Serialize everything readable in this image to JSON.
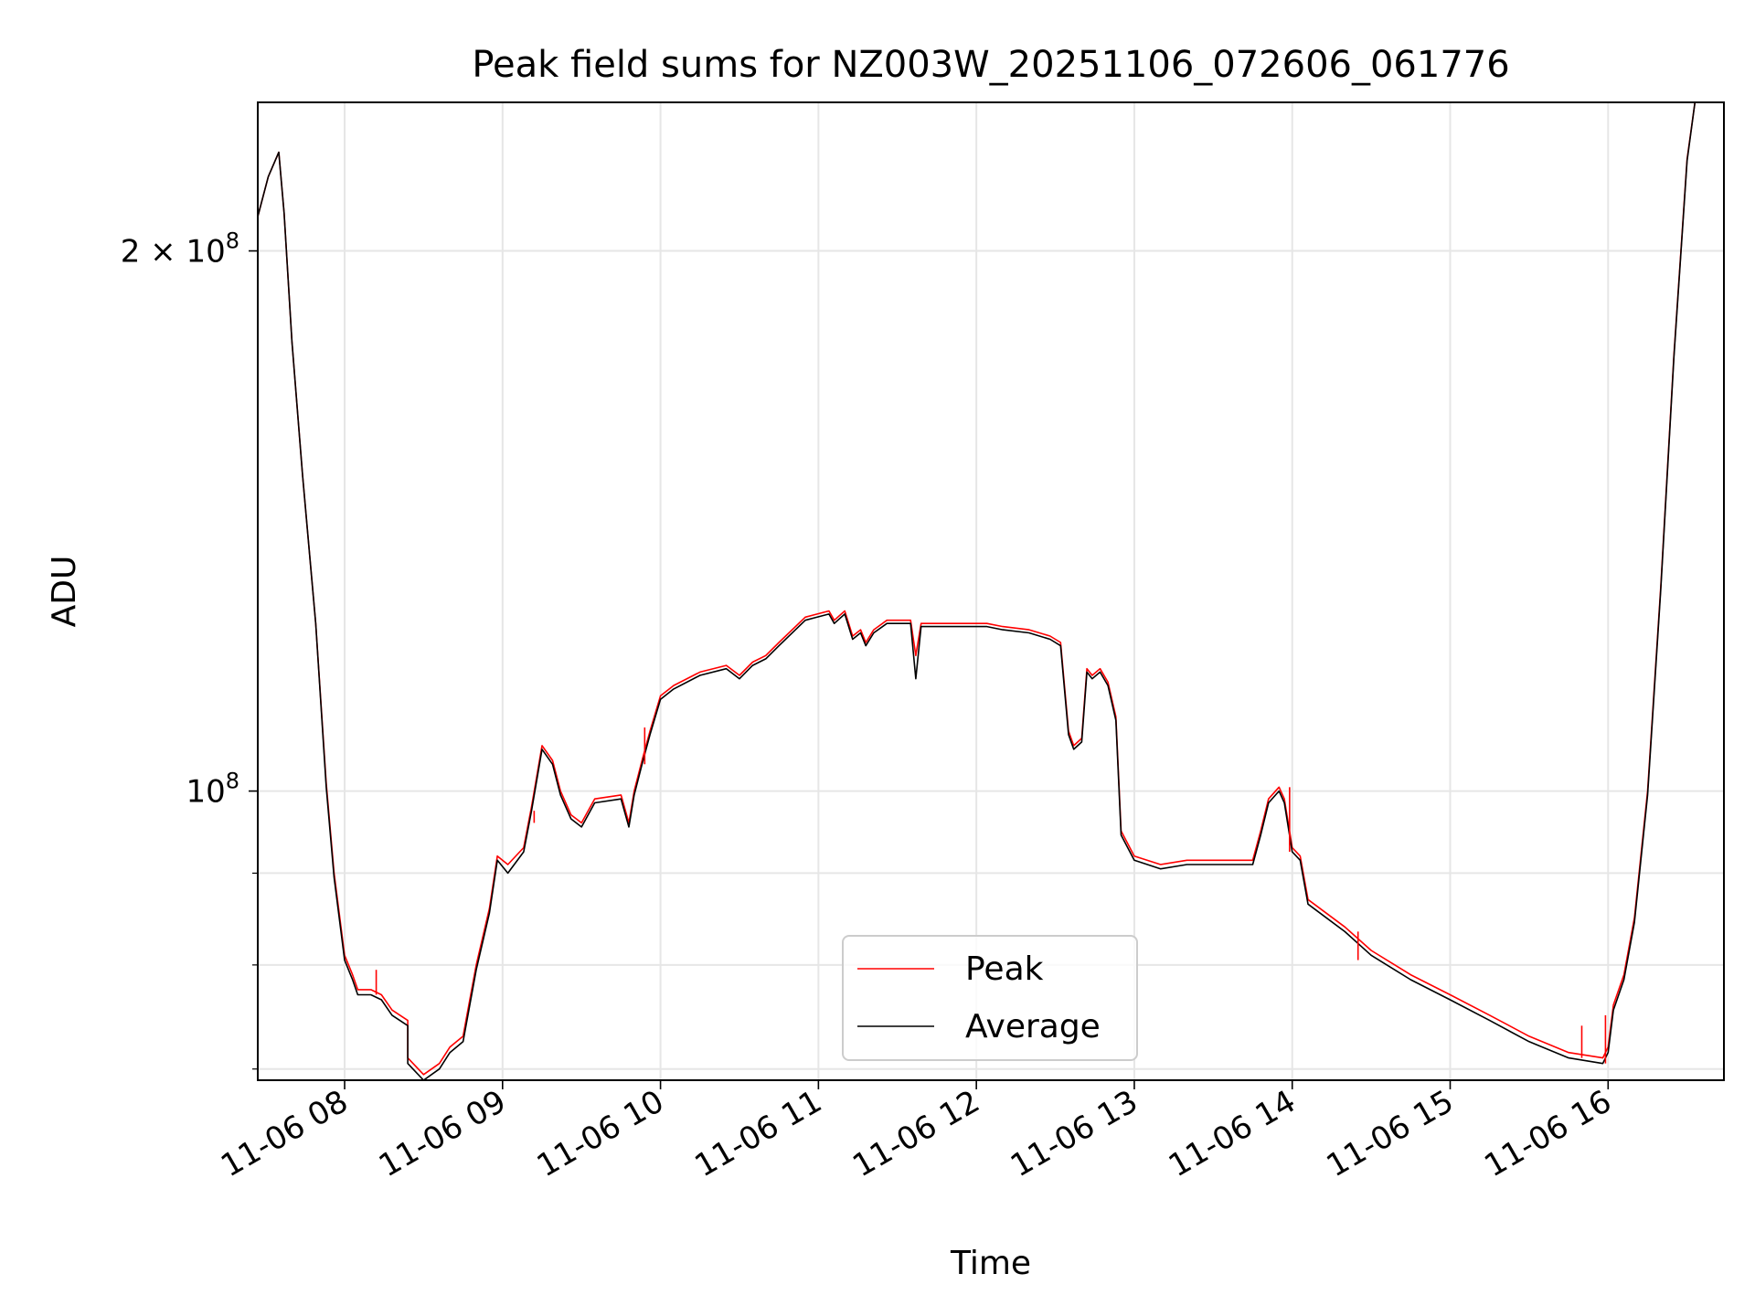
{
  "chart_data": {
    "type": "line",
    "title": "Peak field sums for NZ003W_20251106_072606_061776",
    "xlabel": "Time",
    "ylabel": "ADU",
    "yscale": "log",
    "grid": true,
    "legend_location": "lower center",
    "xlim": [
      "2025-11-06 07:27",
      "2025-11-06 16:44"
    ],
    "ylim": [
      69000000,
      242000000
    ],
    "x_ticks": [
      {
        "value": "2025-11-06 08:00",
        "label": "11-06 08"
      },
      {
        "value": "2025-11-06 09:00",
        "label": "11-06 09"
      },
      {
        "value": "2025-11-06 10:00",
        "label": "11-06 10"
      },
      {
        "value": "2025-11-06 11:00",
        "label": "11-06 11"
      },
      {
        "value": "2025-11-06 12:00",
        "label": "11-06 12"
      },
      {
        "value": "2025-11-06 13:00",
        "label": "11-06 13"
      },
      {
        "value": "2025-11-06 14:00",
        "label": "11-06 14"
      },
      {
        "value": "2025-11-06 15:00",
        "label": "11-06 15"
      },
      {
        "value": "2025-11-06 16:00",
        "label": "11-06 16"
      }
    ],
    "y_major_ticks": [
      {
        "value": 100000000,
        "base": "10",
        "exp": "8",
        "mant": ""
      },
      {
        "value": 200000000,
        "base": "10",
        "exp": "8",
        "mant": "2 × "
      }
    ],
    "y_minor_ticks": [
      70000000,
      80000000,
      90000000
    ],
    "series": [
      {
        "name": "Peak",
        "color": "#ff0000",
        "points": [
          [
            "2025-11-06 07:27",
            209000000
          ],
          [
            "2025-11-06 07:31",
            220000000
          ],
          [
            "2025-11-06 07:35",
            227000000
          ],
          [
            "2025-11-06 07:37",
            210000000
          ],
          [
            "2025-11-06 07:40",
            178000000
          ],
          [
            "2025-11-06 07:44",
            150000000
          ],
          [
            "2025-11-06 07:49",
            124000000
          ],
          [
            "2025-11-06 07:53",
            101000000
          ],
          [
            "2025-11-06 07:56",
            90000000
          ],
          [
            "2025-11-06 08:00",
            81000000
          ],
          [
            "2025-11-06 08:03",
            79000000
          ],
          [
            "2025-11-06 08:05",
            77500000
          ],
          [
            "2025-11-06 08:10",
            77500000
          ],
          [
            "2025-11-06 08:14",
            77000000
          ],
          [
            "2025-11-06 08:18",
            75500000
          ],
          [
            "2025-11-06 08:24",
            74500000
          ],
          [
            "2025-11-06 08:24",
            71000000
          ],
          [
            "2025-11-06 08:30",
            69500000
          ],
          [
            "2025-11-06 08:36",
            70500000
          ],
          [
            "2025-11-06 08:40",
            72000000
          ],
          [
            "2025-11-06 08:45",
            73000000
          ],
          [
            "2025-11-06 08:50",
            80000000
          ],
          [
            "2025-11-06 08:55",
            86000000
          ],
          [
            "2025-11-06 08:58",
            92000000
          ],
          [
            "2025-11-06 09:02",
            91000000
          ],
          [
            "2025-11-06 09:08",
            93000000
          ],
          [
            "2025-11-06 09:11",
            98000000
          ],
          [
            "2025-11-06 09:15",
            106000000
          ],
          [
            "2025-11-06 09:19",
            104000000
          ],
          [
            "2025-11-06 09:22",
            100000000
          ],
          [
            "2025-11-06 09:26",
            97000000
          ],
          [
            "2025-11-06 09:30",
            96000000
          ],
          [
            "2025-11-06 09:35",
            99000000
          ],
          [
            "2025-11-06 09:45",
            99500000
          ],
          [
            "2025-11-06 09:48",
            96000000
          ],
          [
            "2025-11-06 09:50",
            100000000
          ],
          [
            "2025-11-06 09:53",
            104000000
          ],
          [
            "2025-11-06 09:56",
            108000000
          ],
          [
            "2025-11-06 10:00",
            113000000
          ],
          [
            "2025-11-06 10:05",
            114500000
          ],
          [
            "2025-11-06 10:15",
            116500000
          ],
          [
            "2025-11-06 10:25",
            117500000
          ],
          [
            "2025-11-06 10:30",
            116000000
          ],
          [
            "2025-11-06 10:35",
            118000000
          ],
          [
            "2025-11-06 10:40",
            119000000
          ],
          [
            "2025-11-06 10:45",
            121000000
          ],
          [
            "2025-11-06 10:55",
            125000000
          ],
          [
            "2025-11-06 11:04",
            126000000
          ],
          [
            "2025-11-06 11:06",
            124500000
          ],
          [
            "2025-11-06 11:10",
            126000000
          ],
          [
            "2025-11-06 11:13",
            122000000
          ],
          [
            "2025-11-06 11:16",
            123000000
          ],
          [
            "2025-11-06 11:18",
            121000000
          ],
          [
            "2025-11-06 11:21",
            123000000
          ],
          [
            "2025-11-06 11:26",
            124500000
          ],
          [
            "2025-11-06 11:35",
            124500000
          ],
          [
            "2025-11-06 11:37",
            119000000
          ],
          [
            "2025-11-06 11:39",
            124000000
          ],
          [
            "2025-11-06 11:45",
            124000000
          ],
          [
            "2025-11-06 11:55",
            124000000
          ],
          [
            "2025-11-06 12:04",
            124000000
          ],
          [
            "2025-11-06 12:10",
            123500000
          ],
          [
            "2025-11-06 12:20",
            123000000
          ],
          [
            "2025-11-06 12:28",
            122000000
          ],
          [
            "2025-11-06 12:32",
            121000000
          ],
          [
            "2025-11-06 12:35",
            108000000
          ],
          [
            "2025-11-06 12:37",
            106000000
          ],
          [
            "2025-11-06 12:40",
            107000000
          ],
          [
            "2025-11-06 12:42",
            117000000
          ],
          [
            "2025-11-06 12:44",
            116000000
          ],
          [
            "2025-11-06 12:47",
            117000000
          ],
          [
            "2025-11-06 12:50",
            115000000
          ],
          [
            "2025-11-06 12:53",
            110000000
          ],
          [
            "2025-11-06 12:55",
            95000000
          ],
          [
            "2025-11-06 13:00",
            92000000
          ],
          [
            "2025-11-06 13:10",
            91000000
          ],
          [
            "2025-11-06 13:20",
            91500000
          ],
          [
            "2025-11-06 13:30",
            91500000
          ],
          [
            "2025-11-06 13:45",
            91500000
          ],
          [
            "2025-11-06 13:48",
            95000000
          ],
          [
            "2025-11-06 13:51",
            99000000
          ],
          [
            "2025-11-06 13:55",
            100500000
          ],
          [
            "2025-11-06 13:57",
            99000000
          ],
          [
            "2025-11-06 14:00",
            93000000
          ],
          [
            "2025-11-06 14:03",
            92000000
          ],
          [
            "2025-11-06 14:06",
            87000000
          ],
          [
            "2025-11-06 14:20",
            84000000
          ],
          [
            "2025-11-06 14:30",
            81500000
          ],
          [
            "2025-11-06 14:45",
            79000000
          ],
          [
            "2025-11-06 15:00",
            77000000
          ],
          [
            "2025-11-06 15:15",
            75000000
          ],
          [
            "2025-11-06 15:30",
            73000000
          ],
          [
            "2025-11-06 15:45",
            71500000
          ],
          [
            "2025-11-06 15:58",
            71000000
          ],
          [
            "2025-11-06 16:00",
            72000000
          ],
          [
            "2025-11-06 16:02",
            76000000
          ],
          [
            "2025-11-06 16:06",
            79000000
          ],
          [
            "2025-11-06 16:10",
            85000000
          ],
          [
            "2025-11-06 16:15",
            100000000
          ],
          [
            "2025-11-06 16:20",
            130000000
          ],
          [
            "2025-11-06 16:25",
            175000000
          ],
          [
            "2025-11-06 16:30",
            225000000
          ],
          [
            "2025-11-06 16:33",
            242000000
          ]
        ]
      },
      {
        "name": "Average",
        "color": "#000000",
        "points": [
          [
            "2025-11-06 07:27",
            209000000
          ],
          [
            "2025-11-06 07:31",
            220000000
          ],
          [
            "2025-11-06 07:35",
            227000000
          ],
          [
            "2025-11-06 07:37",
            210000000
          ],
          [
            "2025-11-06 07:40",
            178000000
          ],
          [
            "2025-11-06 07:44",
            150000000
          ],
          [
            "2025-11-06 07:49",
            124000000
          ],
          [
            "2025-11-06 07:53",
            100500000
          ],
          [
            "2025-11-06 07:56",
            89500000
          ],
          [
            "2025-11-06 08:00",
            80500000
          ],
          [
            "2025-11-06 08:03",
            78500000
          ],
          [
            "2025-11-06 08:05",
            77000000
          ],
          [
            "2025-11-06 08:10",
            77000000
          ],
          [
            "2025-11-06 08:14",
            76500000
          ],
          [
            "2025-11-06 08:18",
            75000000
          ],
          [
            "2025-11-06 08:24",
            74000000
          ],
          [
            "2025-11-06 08:24",
            70500000
          ],
          [
            "2025-11-06 08:30",
            69000000
          ],
          [
            "2025-11-06 08:36",
            70000000
          ],
          [
            "2025-11-06 08:40",
            71500000
          ],
          [
            "2025-11-06 08:45",
            72500000
          ],
          [
            "2025-11-06 08:50",
            79500000
          ],
          [
            "2025-11-06 08:55",
            85500000
          ],
          [
            "2025-11-06 08:58",
            91500000
          ],
          [
            "2025-11-06 09:02",
            90000000
          ],
          [
            "2025-11-06 09:08",
            92500000
          ],
          [
            "2025-11-06 09:11",
            97500000
          ],
          [
            "2025-11-06 09:15",
            105500000
          ],
          [
            "2025-11-06 09:19",
            103500000
          ],
          [
            "2025-11-06 09:22",
            99500000
          ],
          [
            "2025-11-06 09:26",
            96500000
          ],
          [
            "2025-11-06 09:30",
            95500000
          ],
          [
            "2025-11-06 09:35",
            98500000
          ],
          [
            "2025-11-06 09:45",
            99000000
          ],
          [
            "2025-11-06 09:48",
            95500000
          ],
          [
            "2025-11-06 09:50",
            99500000
          ],
          [
            "2025-11-06 09:53",
            103500000
          ],
          [
            "2025-11-06 09:56",
            107500000
          ],
          [
            "2025-11-06 10:00",
            112500000
          ],
          [
            "2025-11-06 10:05",
            114000000
          ],
          [
            "2025-11-06 10:15",
            116000000
          ],
          [
            "2025-11-06 10:25",
            117000000
          ],
          [
            "2025-11-06 10:30",
            115500000
          ],
          [
            "2025-11-06 10:35",
            117500000
          ],
          [
            "2025-11-06 10:40",
            118500000
          ],
          [
            "2025-11-06 10:45",
            120500000
          ],
          [
            "2025-11-06 10:55",
            124500000
          ],
          [
            "2025-11-06 11:04",
            125500000
          ],
          [
            "2025-11-06 11:06",
            124000000
          ],
          [
            "2025-11-06 11:10",
            125500000
          ],
          [
            "2025-11-06 11:13",
            121500000
          ],
          [
            "2025-11-06 11:16",
            122500000
          ],
          [
            "2025-11-06 11:18",
            120500000
          ],
          [
            "2025-11-06 11:21",
            122500000
          ],
          [
            "2025-11-06 11:26",
            124000000
          ],
          [
            "2025-11-06 11:35",
            124000000
          ],
          [
            "2025-11-06 11:37",
            115500000
          ],
          [
            "2025-11-06 11:39",
            123500000
          ],
          [
            "2025-11-06 11:45",
            123500000
          ],
          [
            "2025-11-06 11:55",
            123500000
          ],
          [
            "2025-11-06 12:04",
            123500000
          ],
          [
            "2025-11-06 12:10",
            123000000
          ],
          [
            "2025-11-06 12:20",
            122500000
          ],
          [
            "2025-11-06 12:28",
            121500000
          ],
          [
            "2025-11-06 12:32",
            120500000
          ],
          [
            "2025-11-06 12:35",
            107500000
          ],
          [
            "2025-11-06 12:37",
            105500000
          ],
          [
            "2025-11-06 12:40",
            106500000
          ],
          [
            "2025-11-06 12:42",
            116500000
          ],
          [
            "2025-11-06 12:44",
            115500000
          ],
          [
            "2025-11-06 12:47",
            116500000
          ],
          [
            "2025-11-06 12:50",
            114500000
          ],
          [
            "2025-11-06 12:53",
            109500000
          ],
          [
            "2025-11-06 12:55",
            94500000
          ],
          [
            "2025-11-06 13:00",
            91500000
          ],
          [
            "2025-11-06 13:10",
            90500000
          ],
          [
            "2025-11-06 13:20",
            91000000
          ],
          [
            "2025-11-06 13:30",
            91000000
          ],
          [
            "2025-11-06 13:45",
            91000000
          ],
          [
            "2025-11-06 13:48",
            94500000
          ],
          [
            "2025-11-06 13:51",
            98500000
          ],
          [
            "2025-11-06 13:55",
            100000000
          ],
          [
            "2025-11-06 13:57",
            98500000
          ],
          [
            "2025-11-06 14:00",
            92500000
          ],
          [
            "2025-11-06 14:03",
            91500000
          ],
          [
            "2025-11-06 14:06",
            86500000
          ],
          [
            "2025-11-06 14:20",
            83500000
          ],
          [
            "2025-11-06 14:30",
            81000000
          ],
          [
            "2025-11-06 14:45",
            78500000
          ],
          [
            "2025-11-06 15:00",
            76500000
          ],
          [
            "2025-11-06 15:15",
            74500000
          ],
          [
            "2025-11-06 15:30",
            72500000
          ],
          [
            "2025-11-06 15:45",
            71000000
          ],
          [
            "2025-11-06 15:58",
            70500000
          ],
          [
            "2025-11-06 16:00",
            71500000
          ],
          [
            "2025-11-06 16:02",
            75500000
          ],
          [
            "2025-11-06 16:06",
            78500000
          ],
          [
            "2025-11-06 16:10",
            84500000
          ],
          [
            "2025-11-06 16:15",
            99500000
          ],
          [
            "2025-11-06 16:20",
            129500000
          ],
          [
            "2025-11-06 16:25",
            174500000
          ],
          [
            "2025-11-06 16:30",
            224500000
          ],
          [
            "2025-11-06 16:33",
            242000000
          ]
        ]
      }
    ],
    "spikes": [
      {
        "series": "Peak",
        "x": "2025-11-06 08:12",
        "y": 79500000
      },
      {
        "series": "Peak",
        "x": "2025-11-06 09:12",
        "y": 96000000
      },
      {
        "series": "Peak",
        "x": "2025-11-06 09:54",
        "y": 108500000
      },
      {
        "series": "Peak",
        "x": "2025-11-06 13:59",
        "y": 100500000
      },
      {
        "series": "Peak",
        "x": "2025-11-06 14:25",
        "y": 80500000
      },
      {
        "series": "Peak",
        "x": "2025-11-06 15:50",
        "y": 74000000
      },
      {
        "series": "Peak",
        "x": "2025-11-06 15:59",
        "y": 75000000
      }
    ]
  }
}
